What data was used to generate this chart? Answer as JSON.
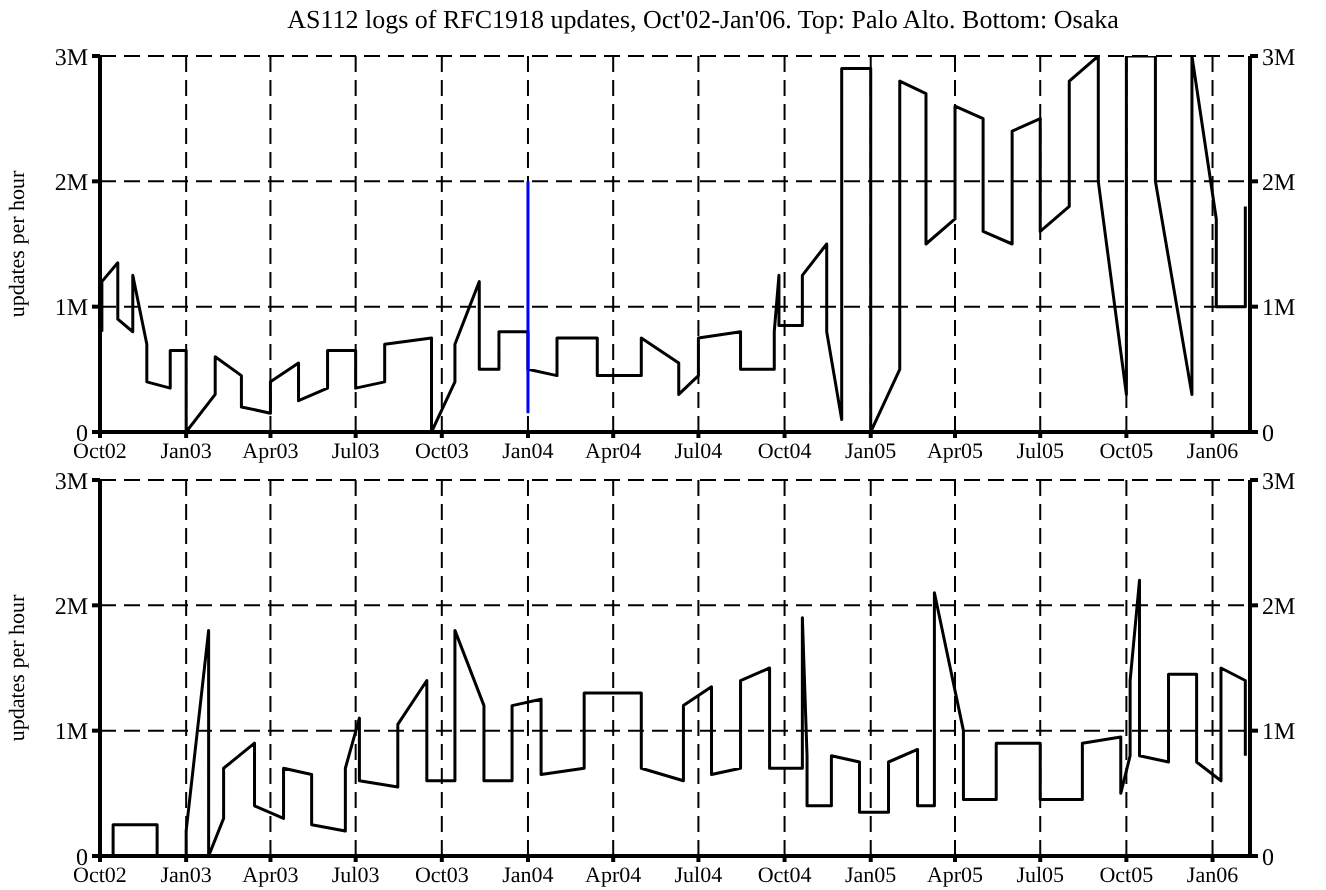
{
  "chart_data": [
    {
      "type": "line",
      "title": "AS112 logs of RFC1918 updates, Oct'02-Jan'06. Top: Palo Alto. Bottom: Osaka",
      "ylabel": "updates per hour",
      "xlim": [
        "2002-10-01",
        "2006-02-10"
      ],
      "xticks": [
        {
          "value": "2002-10-01",
          "label": "Oct02"
        },
        {
          "value": "2003-01-01",
          "label": "Jan03"
        },
        {
          "value": "2003-04-01",
          "label": "Apr03"
        },
        {
          "value": "2003-07-01",
          "label": "Jul03"
        },
        {
          "value": "2003-10-01",
          "label": "Oct03"
        },
        {
          "value": "2004-01-01",
          "label": "Jan04"
        },
        {
          "value": "2004-04-01",
          "label": "Apr04"
        },
        {
          "value": "2004-07-01",
          "label": "Jul04"
        },
        {
          "value": "2004-10-01",
          "label": "Oct04"
        },
        {
          "value": "2005-01-01",
          "label": "Jan05"
        },
        {
          "value": "2005-04-01",
          "label": "Apr05"
        },
        {
          "value": "2005-07-01",
          "label": "Jul05"
        },
        {
          "value": "2005-10-01",
          "label": "Oct05"
        },
        {
          "value": "2006-01-01",
          "label": "Jan06"
        }
      ],
      "ylim": [
        0,
        3000000
      ],
      "yticks": [
        0,
        {
          "value": 1000000,
          "label": "1M"
        },
        {
          "value": 2000000,
          "label": "2M"
        },
        {
          "value": 3000000,
          "label": "3M"
        }
      ],
      "y2lim": [
        0,
        3000000
      ],
      "y2ticks": [
        0,
        {
          "value": 1000000,
          "label": "1M"
        },
        {
          "value": 2000000,
          "label": "2M"
        },
        {
          "value": 3000000,
          "label": "3M"
        }
      ],
      "grid": true,
      "series": [
        {
          "color": "#000000",
          "x": [
            "2002-10-03",
            "2002-10-03",
            "2002-10-20",
            "2002-10-20",
            "2002-11-05",
            "2002-11-05",
            "2002-11-20",
            "2002-11-20",
            "2002-12-15",
            "2002-12-15",
            "2003-01-01",
            "2003-01-01",
            "2003-02-01",
            "2003-02-01",
            "2003-03-01",
            "2003-03-01",
            "2003-04-01",
            "2003-04-01",
            "2003-05-01",
            "2003-05-01",
            "2003-06-01",
            "2003-06-01",
            "2003-07-01",
            "2003-07-01",
            "2003-08-01",
            "2003-08-01",
            "2003-09-20",
            "2003-09-20",
            "2003-10-15",
            "2003-10-15",
            "2003-11-10",
            "2003-11-10",
            "2003-12-01",
            "2003-12-01",
            "2004-01-01",
            "2004-01-01",
            "2004-02-01",
            "2004-02-01",
            "2004-03-15",
            "2004-03-15",
            "2004-05-01",
            "2004-05-01",
            "2004-06-10",
            "2004-06-10",
            "2004-07-01",
            "2004-07-01",
            "2004-08-15",
            "2004-08-15",
            "2004-09-20",
            "2004-09-20",
            "2004-09-25",
            "2004-09-25",
            "2004-10-20",
            "2004-10-20",
            "2004-11-15",
            "2004-11-15",
            "2004-12-01",
            "2004-12-01",
            "2005-01-01",
            "2005-01-01",
            "2005-02-01",
            "2005-02-01",
            "2005-03-01",
            "2005-03-01",
            "2005-04-01",
            "2005-04-01",
            "2005-05-01",
            "2005-05-01",
            "2005-06-01",
            "2005-06-01",
            "2005-07-01",
            "2005-07-01",
            "2005-08-01",
            "2005-08-01",
            "2005-09-01",
            "2005-09-01",
            "2005-10-01",
            "2005-10-01",
            "2005-11-01",
            "2005-11-01",
            "2005-12-10",
            "2005-12-10",
            "2006-01-05",
            "2006-01-05",
            "2006-02-05",
            "2006-02-05"
          ],
          "values": [
            800000,
            1200000,
            1350000,
            900000,
            800000,
            1250000,
            700000,
            400000,
            350000,
            650000,
            650000,
            0,
            300000,
            600000,
            450000,
            200000,
            150000,
            400000,
            550000,
            250000,
            350000,
            650000,
            650000,
            350000,
            400000,
            700000,
            750000,
            0,
            400000,
            700000,
            1200000,
            500000,
            500000,
            800000,
            800000,
            500000,
            450000,
            750000,
            750000,
            450000,
            450000,
            750000,
            550000,
            300000,
            450000,
            750000,
            800000,
            500000,
            500000,
            800000,
            1250000,
            850000,
            850000,
            1250000,
            1500000,
            800000,
            100000,
            2900000,
            2900000,
            0,
            500000,
            2800000,
            2700000,
            1500000,
            1700000,
            2600000,
            2500000,
            1600000,
            1500000,
            2400000,
            2500000,
            1600000,
            1800000,
            2800000,
            3000000,
            2000000,
            300000,
            3000000,
            3000000,
            2000000,
            300000,
            3000000,
            1700000,
            1000000,
            1000000,
            1800000
          ]
        },
        {
          "type": "line",
          "color": "#0000ff",
          "x": [
            "2004-01-01",
            "2004-01-01"
          ],
          "values": [
            150000,
            2000000
          ]
        }
      ]
    },
    {
      "type": "line",
      "ylabel": "updates per hour",
      "xlim": [
        "2002-10-01",
        "2006-02-10"
      ],
      "xticks": [
        {
          "value": "2002-10-01",
          "label": "Oct02"
        },
        {
          "value": "2003-01-01",
          "label": "Jan03"
        },
        {
          "value": "2003-04-01",
          "label": "Apr03"
        },
        {
          "value": "2003-07-01",
          "label": "Jul03"
        },
        {
          "value": "2003-10-01",
          "label": "Oct03"
        },
        {
          "value": "2004-01-01",
          "label": "Jan04"
        },
        {
          "value": "2004-04-01",
          "label": "Apr04"
        },
        {
          "value": "2004-07-01",
          "label": "Jul04"
        },
        {
          "value": "2004-10-01",
          "label": "Oct04"
        },
        {
          "value": "2005-01-01",
          "label": "Jan05"
        },
        {
          "value": "2005-04-01",
          "label": "Apr05"
        },
        {
          "value": "2005-07-01",
          "label": "Jul05"
        },
        {
          "value": "2005-10-01",
          "label": "Oct05"
        },
        {
          "value": "2006-01-01",
          "label": "Jan06"
        }
      ],
      "ylim": [
        0,
        3000000
      ],
      "yticks": [
        0,
        {
          "value": 1000000,
          "label": "1M"
        },
        {
          "value": 2000000,
          "label": "2M"
        },
        {
          "value": 3000000,
          "label": "3M"
        }
      ],
      "y2lim": [
        0,
        3000000
      ],
      "y2ticks": [
        0,
        {
          "value": 1000000,
          "label": "1M"
        },
        {
          "value": 2000000,
          "label": "2M"
        },
        {
          "value": 3000000,
          "label": "3M"
        }
      ],
      "grid": true,
      "series": [
        {
          "color": "#000000",
          "x": [
            "2002-10-15",
            "2002-10-15",
            "2002-12-01",
            "2002-12-01",
            "2003-01-01",
            "2003-01-01",
            "2003-01-25",
            "2003-01-25",
            "2003-02-10",
            "2003-02-10",
            "2003-03-15",
            "2003-03-15",
            "2003-04-15",
            "2003-04-15",
            "2003-05-15",
            "2003-05-15",
            "2003-06-20",
            "2003-06-20",
            "2003-07-05",
            "2003-07-05",
            "2003-08-15",
            "2003-08-15",
            "2003-09-15",
            "2003-09-15",
            "2003-10-15",
            "2003-10-15",
            "2003-11-15",
            "2003-11-15",
            "2003-12-15",
            "2003-12-15",
            "2004-01-15",
            "2004-01-15",
            "2004-03-01",
            "2004-03-01",
            "2004-05-01",
            "2004-05-01",
            "2004-06-15",
            "2004-06-15",
            "2004-07-15",
            "2004-07-15",
            "2004-08-15",
            "2004-08-15",
            "2004-09-15",
            "2004-09-15",
            "2004-10-20",
            "2004-10-20",
            "2004-10-25",
            "2004-10-25",
            "2004-11-20",
            "2004-11-20",
            "2004-12-20",
            "2004-12-20",
            "2005-01-20",
            "2005-01-20",
            "2005-02-20",
            "2005-02-20",
            "2005-03-10",
            "2005-03-10",
            "2005-04-10",
            "2005-04-10",
            "2005-05-15",
            "2005-05-15",
            "2005-07-01",
            "2005-07-01",
            "2005-08-15",
            "2005-08-15",
            "2005-09-25",
            "2005-09-25",
            "2005-10-05",
            "2005-10-05",
            "2005-10-15",
            "2005-10-15",
            "2005-11-15",
            "2005-11-15",
            "2005-12-15",
            "2005-12-15",
            "2006-01-10",
            "2006-01-10",
            "2006-02-05",
            "2006-02-05"
          ],
          "values": [
            0,
            250000,
            250000,
            0,
            0,
            200000,
            1800000,
            0,
            300000,
            700000,
            900000,
            400000,
            300000,
            700000,
            650000,
            250000,
            200000,
            700000,
            1100000,
            600000,
            550000,
            1050000,
            1400000,
            600000,
            600000,
            1800000,
            1200000,
            600000,
            600000,
            1200000,
            1250000,
            650000,
            700000,
            1300000,
            1300000,
            700000,
            600000,
            1200000,
            1350000,
            650000,
            700000,
            1400000,
            1500000,
            700000,
            700000,
            1900000,
            800000,
            400000,
            400000,
            800000,
            750000,
            350000,
            350000,
            750000,
            850000,
            400000,
            400000,
            2100000,
            1000000,
            450000,
            450000,
            900000,
            900000,
            450000,
            450000,
            900000,
            950000,
            500000,
            800000,
            1400000,
            2200000,
            800000,
            750000,
            1450000,
            1450000,
            750000,
            600000,
            1500000,
            1400000,
            800000
          ]
        }
      ]
    }
  ]
}
